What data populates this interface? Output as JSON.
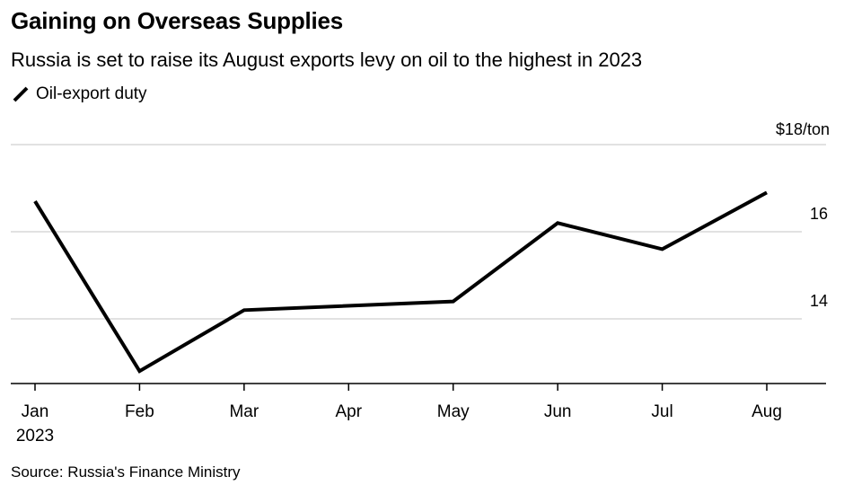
{
  "title": "Gaining on Overseas Supplies",
  "subtitle": "Russia is set to raise its August exports levy on oil to the highest in 2023",
  "source": "Source: Russia's Finance Ministry",
  "chart_data": {
    "type": "line",
    "categories": [
      "Jan",
      "Feb",
      "Mar",
      "Apr",
      "May",
      "Jun",
      "Jul",
      "Aug"
    ],
    "x_sublabel": "2023",
    "series": [
      {
        "name": "Oil-export duty",
        "color": "#000000",
        "values": [
          16.7,
          12.8,
          14.2,
          null,
          14.4,
          16.2,
          15.6,
          16.9
        ]
      }
    ],
    "y_unit_label": "$18/ton",
    "y_ticks": [
      14,
      16
    ],
    "ylim": [
      12.5,
      18
    ],
    "y_axis_position": "right",
    "grid": true,
    "legend_position": "top-left",
    "colors": {
      "line": "#000000",
      "grid": "#d9d9d9",
      "axis": "#000000"
    }
  }
}
